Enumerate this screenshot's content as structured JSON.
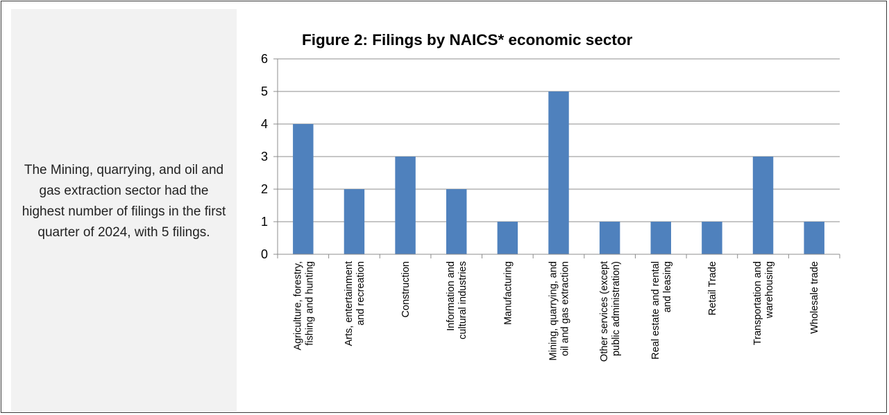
{
  "note": "The Mining, quarrying, and oil and gas extraction sector had the highest number of filings in the first quarter of 2024, with 5 filings.",
  "chart_data": {
    "type": "bar",
    "title": "Figure 2: Filings by NAICS* economic sector",
    "xlabel": "",
    "ylabel": "",
    "ylim": [
      0,
      6
    ],
    "yticks": [
      0,
      1,
      2,
      3,
      4,
      5,
      6
    ],
    "grid": true,
    "legend": "none",
    "bar_color": "#4f81bd",
    "categories": [
      [
        "Agriculture, forestry,",
        "fishing and hunting"
      ],
      [
        "Arts, entertainment",
        "and recreation"
      ],
      [
        "Construction"
      ],
      [
        "Information and",
        "cultural industries"
      ],
      [
        "Manufacturing"
      ],
      [
        "Mining, quarrying, and",
        "oil and gas extraction"
      ],
      [
        "Other services (except",
        "public administration)"
      ],
      [
        "Real estate and rental",
        "and leasing"
      ],
      [
        "Retail Trade"
      ],
      [
        "Transportation and",
        "warehousing"
      ],
      [
        "Wholesale trade"
      ]
    ],
    "values": [
      4,
      2,
      3,
      2,
      1,
      5,
      1,
      1,
      1,
      3,
      1
    ]
  }
}
